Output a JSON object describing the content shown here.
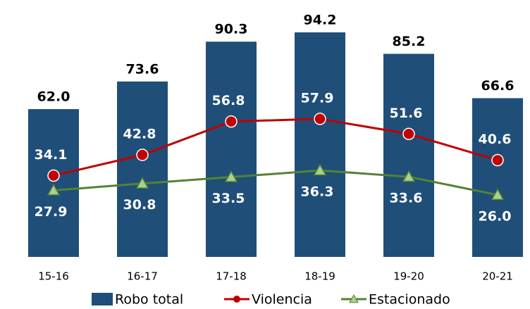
{
  "chart_data": {
    "type": "bar-line",
    "categories": [
      "15-16",
      "16-17",
      "17-18",
      "18-19",
      "19-20",
      "20-21"
    ],
    "series": [
      {
        "name": "Robo total",
        "type": "bar",
        "color": "#1f4e79",
        "values": [
          62.0,
          73.6,
          90.3,
          94.2,
          85.2,
          66.6
        ],
        "value_labels": [
          "62.0",
          "73.6",
          "90.3",
          "94.2",
          "85.2",
          "66.6"
        ]
      },
      {
        "name": "Violencia",
        "type": "line",
        "marker": "circle",
        "color": "#c00000",
        "values": [
          34.1,
          42.8,
          56.8,
          57.9,
          51.6,
          40.6
        ],
        "value_labels": [
          "34.1",
          "42.8",
          "56.8",
          "57.9",
          "51.6",
          "40.6"
        ]
      },
      {
        "name": "Estacionado",
        "type": "line",
        "marker": "triangle",
        "color": "#548235",
        "values": [
          27.9,
          30.8,
          33.5,
          36.3,
          33.6,
          26.0
        ],
        "value_labels": [
          "27.9",
          "30.8",
          "33.5",
          "36.3",
          "33.6",
          "26.0"
        ]
      }
    ]
  }
}
